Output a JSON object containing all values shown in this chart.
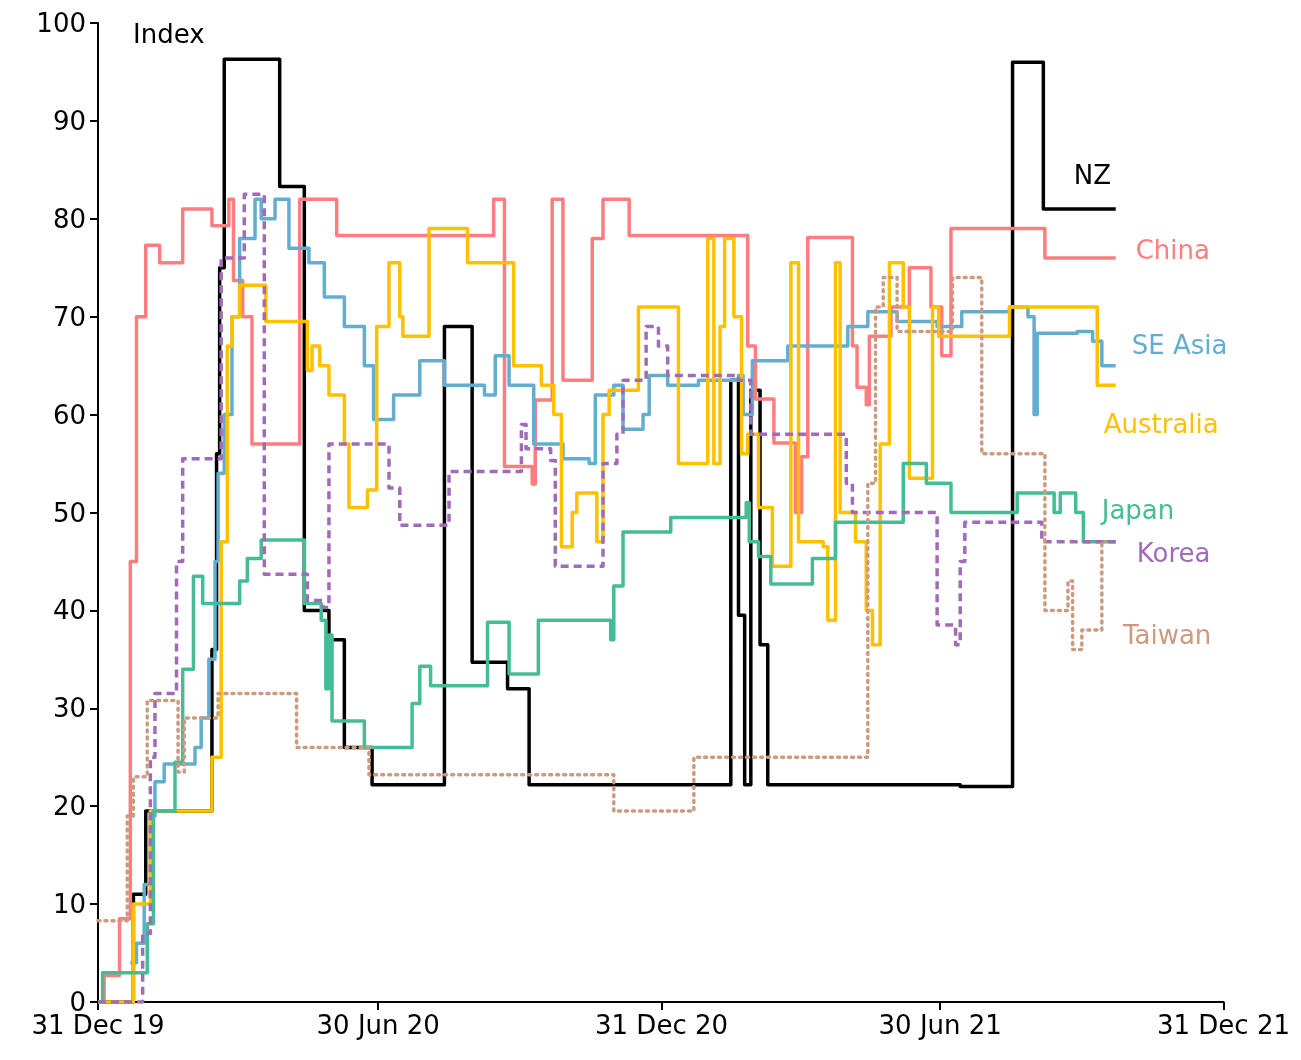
{
  "chart_data": {
    "type": "step",
    "ylabel": "Index",
    "ylim": [
      0,
      100
    ],
    "yticks": [
      0,
      10,
      20,
      30,
      40,
      50,
      60,
      70,
      80,
      90,
      100
    ],
    "xlim": [
      "2019-12-31",
      "2021-12-31"
    ],
    "xticks": [
      {
        "value": "2019-12-31",
        "label": "31 Dec 19"
      },
      {
        "value": "2020-06-30",
        "label": "30 Jun 20"
      },
      {
        "value": "2020-12-31",
        "label": "31 Dec 20"
      },
      {
        "value": "2021-06-30",
        "label": "30 Jun 21"
      },
      {
        "value": "2021-12-31",
        "label": "31 Dec 21"
      }
    ],
    "grid": false,
    "legend": false,
    "marker": "none",
    "series": [
      {
        "name": "NZ",
        "color": "#000000",
        "line_style": "solid",
        "x": [
          "2019-12-31",
          "2020-01-23",
          "2020-01-31",
          "2020-03-14",
          "2020-03-17",
          "2020-03-19",
          "2020-03-22",
          "2020-04-27",
          "2020-05-13",
          "2020-05-29",
          "2020-06-08",
          "2020-06-26",
          "2020-08-12",
          "2020-08-30",
          "2020-09-22",
          "2020-10-06",
          "2021-02-14",
          "2021-02-19",
          "2021-02-23",
          "2021-02-27",
          "2021-03-05",
          "2021-03-10",
          "2021-07-13",
          "2021-08-16",
          "2021-09-05",
          "2021-10-22"
        ],
        "values": [
          0,
          11,
          19.5,
          36,
          56,
          75,
          96.3,
          83.3,
          40,
          37,
          26,
          22.2,
          69,
          34.7,
          32,
          22.2,
          63.5,
          39.5,
          22.2,
          62.5,
          36.5,
          22.2,
          22,
          96,
          81,
          81
        ]
      },
      {
        "name": "China",
        "color": "#ff7c80",
        "line_style": "solid",
        "x": [
          "2019-12-31",
          "2020-01-04",
          "2020-01-14",
          "2020-01-21",
          "2020-01-25",
          "2020-01-31",
          "2020-02-09",
          "2020-02-24",
          "2020-03-14",
          "2020-03-25",
          "2020-03-28",
          "2020-04-03",
          "2020-04-09",
          "2020-05-10",
          "2020-06-03",
          "2020-09-13",
          "2020-09-20",
          "2020-10-08",
          "2020-10-10",
          "2020-10-21",
          "2020-10-28",
          "2020-11-16",
          "2020-11-23",
          "2020-12-10",
          "2021-02-25",
          "2021-03-02",
          "2021-03-14",
          "2021-03-28",
          "2021-04-01",
          "2021-04-05",
          "2021-05-04",
          "2021-05-07",
          "2021-05-13",
          "2021-05-15",
          "2021-05-29",
          "2021-06-10",
          "2021-06-24",
          "2021-07-01",
          "2021-07-07",
          "2021-09-06",
          "2021-10-22"
        ],
        "values": [
          0,
          2.7,
          8.5,
          45,
          70,
          77.3,
          75.5,
          81,
          79.3,
          82,
          73.7,
          70,
          57,
          82,
          78.3,
          82,
          54.7,
          52.9,
          61.5,
          82,
          63.5,
          78,
          82,
          78.3,
          67,
          61.6,
          57.1,
          50,
          55.7,
          78.1,
          67,
          62.8,
          61,
          68,
          71,
          75,
          71,
          66,
          79,
          76,
          76
        ]
      },
      {
        "name": "SE Asia",
        "color": "#63aed0",
        "line_style": "solid",
        "x": [
          "2020-01-21",
          "2020-01-25",
          "2020-01-30",
          "2020-02-03",
          "2020-02-06",
          "2020-02-12",
          "2020-03-03",
          "2020-03-07",
          "2020-03-12",
          "2020-03-16",
          "2020-03-18",
          "2020-03-22",
          "2020-03-27",
          "2020-04-01",
          "2020-04-11",
          "2020-04-15",
          "2020-04-24",
          "2020-05-03",
          "2020-05-16",
          "2020-05-26",
          "2020-06-08",
          "2020-06-21",
          "2020-06-27",
          "2020-07-10",
          "2020-07-27",
          "2020-08-12",
          "2020-09-07",
          "2020-09-14",
          "2020-09-23",
          "2020-10-09",
          "2020-10-28",
          "2020-11-14",
          "2020-11-18",
          "2020-11-30",
          "2020-12-06",
          "2020-12-19",
          "2020-12-23",
          "2021-01-04",
          "2021-01-24",
          "2021-02-19",
          "2021-02-22",
          "2021-02-28",
          "2021-03-23",
          "2021-05-01",
          "2021-05-14",
          "2021-06-02",
          "2021-06-28",
          "2021-07-14",
          "2021-08-14",
          "2021-08-26",
          "2021-08-30",
          "2021-09-01",
          "2021-09-27",
          "2021-10-07",
          "2021-10-13",
          "2021-10-22"
        ],
        "values": [
          4,
          6,
          12,
          19,
          22.5,
          24.3,
          26,
          29,
          35,
          45,
          54,
          60,
          70,
          78,
          82,
          80,
          82,
          77,
          75.5,
          72,
          69,
          65,
          59.5,
          62,
          65.5,
          63,
          62,
          66,
          63,
          57,
          55.5,
          55,
          62,
          63,
          58.5,
          60,
          64,
          63,
          63.5,
          64,
          60,
          65.5,
          67,
          69,
          70.5,
          69.5,
          69,
          70.5,
          71,
          70,
          60,
          68.3,
          68.5,
          67.5,
          65,
          65
        ]
      },
      {
        "name": "Australia",
        "color": "#ffc000",
        "line_style": "solid",
        "x": [
          "2019-12-31",
          "2020-01-23",
          "2020-02-03",
          "2020-03-14",
          "2020-03-20",
          "2020-03-24",
          "2020-03-27",
          "2020-04-01",
          "2020-04-18",
          "2020-05-15",
          "2020-05-18",
          "2020-05-23",
          "2020-05-29",
          "2020-06-08",
          "2020-06-11",
          "2020-06-23",
          "2020-06-29",
          "2020-07-07",
          "2020-07-14",
          "2020-07-16",
          "2020-08-02",
          "2020-08-27",
          "2020-09-26",
          "2020-10-14",
          "2020-10-22",
          "2020-10-27",
          "2020-11-03",
          "2020-11-06",
          "2020-11-19",
          "2020-11-23",
          "2020-11-27",
          "2020-12-16",
          "2021-01-11",
          "2021-01-30",
          "2021-02-03",
          "2021-02-07",
          "2021-02-10",
          "2021-02-16",
          "2021-02-21",
          "2021-02-25",
          "2021-03-04",
          "2021-03-13",
          "2021-03-25",
          "2021-03-30",
          "2021-04-15",
          "2021-04-18",
          "2021-04-23",
          "2021-04-26",
          "2021-05-06",
          "2021-05-13",
          "2021-05-17",
          "2021-05-22",
          "2021-05-28",
          "2021-06-06",
          "2021-06-10",
          "2021-06-25",
          "2021-06-29",
          "2021-08-14",
          "2021-10-10",
          "2021-10-22"
        ],
        "values": [
          0,
          10,
          19.5,
          25,
          47,
          67,
          70,
          73.2,
          69.5,
          64.5,
          67,
          65,
          62,
          57,
          50.5,
          52.3,
          69,
          75.5,
          70,
          68,
          79,
          75.5,
          65,
          63,
          60,
          46.5,
          50,
          52,
          47,
          60,
          62.5,
          71,
          55,
          78,
          55,
          69,
          78,
          70,
          56,
          58,
          50.5,
          44.5,
          75.5,
          47,
          46.5,
          39,
          75.5,
          50,
          47,
          40,
          36.5,
          57,
          75.5,
          71,
          53.5,
          71,
          68,
          71,
          63,
          63
        ]
      },
      {
        "name": "Japan",
        "color": "#46bc96",
        "line_style": "solid",
        "x": [
          "2019-12-31",
          "2020-01-03",
          "2020-02-01",
          "2020-02-05",
          "2020-02-19",
          "2020-02-24",
          "2020-03-02",
          "2020-03-08",
          "2020-04-01",
          "2020-04-06",
          "2020-04-15",
          "2020-05-13",
          "2020-05-24",
          "2020-05-27",
          "2020-05-29",
          "2020-05-31",
          "2020-06-21",
          "2020-07-22",
          "2020-07-27",
          "2020-08-03",
          "2020-09-09",
          "2020-09-23",
          "2020-10-12",
          "2020-11-28",
          "2020-11-30",
          "2020-12-06",
          "2021-01-06",
          "2021-02-24",
          "2021-02-26",
          "2021-03-04",
          "2021-03-12",
          "2021-04-08",
          "2021-04-23",
          "2021-06-06",
          "2021-06-21",
          "2021-07-07",
          "2021-08-19",
          "2021-09-12",
          "2021-09-16",
          "2021-09-26",
          "2021-10-01",
          "2021-10-22"
        ],
        "values": [
          0,
          3,
          8,
          19.5,
          24.5,
          34,
          43.5,
          40.7,
          43,
          45.3,
          47.2,
          40.7,
          39,
          32,
          37.5,
          28.7,
          26,
          30.5,
          34.3,
          32.3,
          38.8,
          33.5,
          39,
          37,
          42.5,
          48,
          49.5,
          51,
          47,
          45.5,
          42.7,
          45.3,
          49,
          55,
          53,
          50,
          52,
          50,
          52,
          50,
          47,
          47
        ]
      },
      {
        "name": "Korea",
        "color": "#a06cb8",
        "line_style": "dashed",
        "x": [
          "2019-12-31",
          "2020-01-29",
          "2020-02-03",
          "2020-02-06",
          "2020-02-20",
          "2020-02-24",
          "2020-03-20",
          "2020-04-04",
          "2020-04-17",
          "2020-05-15",
          "2020-05-25",
          "2020-05-29",
          "2020-07-07",
          "2020-07-14",
          "2020-08-15",
          "2020-10-01",
          "2020-10-04",
          "2020-10-20",
          "2020-10-23",
          "2020-11-23",
          "2020-12-02",
          "2020-12-06",
          "2020-12-21",
          "2020-12-29",
          "2021-01-04",
          "2021-02-19",
          "2021-02-27",
          "2021-04-30",
          "2021-05-04",
          "2021-06-28",
          "2021-07-10",
          "2021-07-13",
          "2021-07-16",
          "2021-09-04",
          "2021-10-22"
        ],
        "values": [
          0,
          7,
          25,
          31.5,
          45,
          55.5,
          76,
          82.5,
          43.7,
          41,
          40.3,
          57,
          52.5,
          48.7,
          54.2,
          59,
          56.5,
          55.3,
          44.5,
          55,
          58,
          63.5,
          69,
          67,
          64,
          63.5,
          58,
          53,
          50,
          38.5,
          36.5,
          45,
          49,
          47,
          47
        ]
      },
      {
        "name": "Taiwan",
        "color": "#cc9a7f",
        "line_style": "dotted",
        "x": [
          "2019-12-31",
          "2020-01-19",
          "2020-01-23",
          "2020-02-01",
          "2020-02-21",
          "2020-02-25",
          "2020-03-18",
          "2020-05-08",
          "2020-06-24",
          "2020-11-30",
          "2021-01-21",
          "2021-05-14",
          "2021-05-19",
          "2021-05-24",
          "2021-06-02",
          "2021-07-08",
          "2021-07-27",
          "2021-09-06",
          "2021-09-21",
          "2021-09-24",
          "2021-09-30",
          "2021-10-13",
          "2021-10-15"
        ],
        "values": [
          8.3,
          19,
          23,
          30.8,
          23.5,
          29,
          31.5,
          26,
          23.2,
          19.5,
          25,
          53,
          71,
          74,
          68.5,
          74,
          56,
          40,
          43,
          36,
          38,
          47,
          47
        ]
      }
    ]
  }
}
